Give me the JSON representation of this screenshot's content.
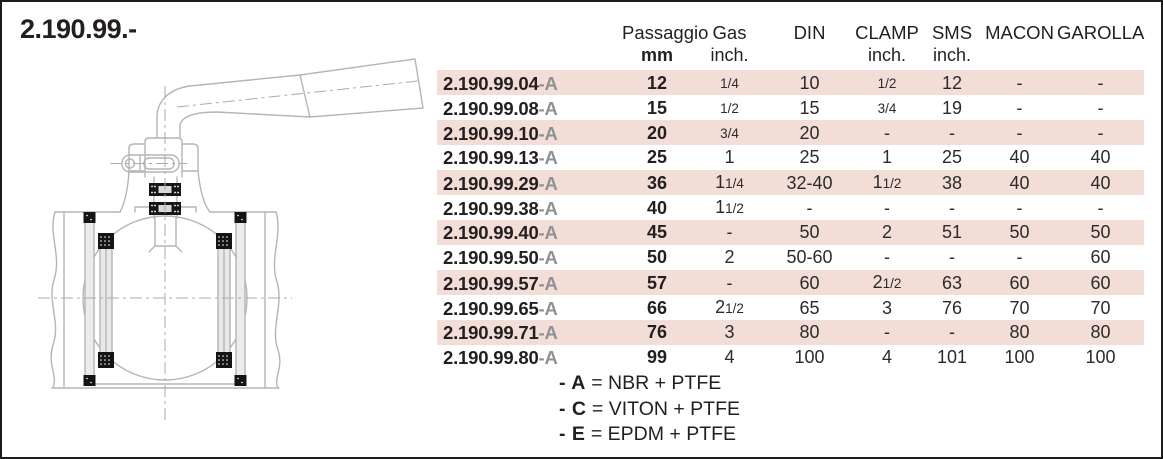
{
  "page": {
    "title": "2.190.99.-"
  },
  "drawing": {
    "name": "ball-valve-cross-section"
  },
  "table": {
    "headers": [
      {
        "line1": "Passaggio",
        "line2": "mm"
      },
      {
        "line1": "Gas",
        "line2": "inch."
      },
      {
        "line1": "DIN",
        "line2": ""
      },
      {
        "line1": "CLAMP",
        "line2": "inch."
      },
      {
        "line1": "SMS",
        "line2": "inch."
      },
      {
        "line1": "MACON",
        "line2": ""
      },
      {
        "line1": "GAROLLA",
        "line2": ""
      }
    ],
    "rows": [
      {
        "code": "2.190.99.04",
        "suffix": "-A",
        "passaggio": "12",
        "gas": "1/4",
        "din": "10",
        "clamp": "1/2",
        "sms": "12",
        "macon": "-",
        "garolla": "-"
      },
      {
        "code": "2.190.99.08",
        "suffix": "-A",
        "passaggio": "15",
        "gas": "1/2",
        "din": "15",
        "clamp": "3/4",
        "sms": "19",
        "macon": "-",
        "garolla": "-"
      },
      {
        "code": "2.190.99.10",
        "suffix": "-A",
        "passaggio": "20",
        "gas": "3/4",
        "din": "20",
        "clamp": "-",
        "sms": "-",
        "macon": "-",
        "garolla": "-"
      },
      {
        "code": "2.190.99.13",
        "suffix": "-A",
        "passaggio": "25",
        "gas": "1",
        "din": "25",
        "clamp": "1",
        "sms": "25",
        "macon": "40",
        "garolla": "40"
      },
      {
        "code": "2.190.99.29",
        "suffix": "-A",
        "passaggio": "36",
        "gas": "1 1/4",
        "din": "32-40",
        "clamp": "1 1/2",
        "sms": "38",
        "macon": "40",
        "garolla": "40"
      },
      {
        "code": "2.190.99.38",
        "suffix": "-A",
        "passaggio": "40",
        "gas": "1 1/2",
        "din": "-",
        "clamp": "-",
        "sms": "-",
        "macon": "-",
        "garolla": "-"
      },
      {
        "code": "2.190.99.40",
        "suffix": "-A",
        "passaggio": "45",
        "gas": "-",
        "din": "50",
        "clamp": "2",
        "sms": "51",
        "macon": "50",
        "garolla": "50"
      },
      {
        "code": "2.190.99.50",
        "suffix": "-A",
        "passaggio": "50",
        "gas": "2",
        "din": "50-60",
        "clamp": "-",
        "sms": "-",
        "macon": "-",
        "garolla": "60"
      },
      {
        "code": "2.190.99.57",
        "suffix": "-A",
        "passaggio": "57",
        "gas": "-",
        "din": "60",
        "clamp": "2 1/2",
        "sms": "63",
        "macon": "60",
        "garolla": "60"
      },
      {
        "code": "2.190.99.65",
        "suffix": "-A",
        "passaggio": "66",
        "gas": "2 1/2",
        "din": "65",
        "clamp": "3",
        "sms": "76",
        "macon": "70",
        "garolla": "70"
      },
      {
        "code": "2.190.99.71",
        "suffix": "-A",
        "passaggio": "76",
        "gas": "3",
        "din": "80",
        "clamp": "-",
        "sms": "-",
        "macon": "80",
        "garolla": "80"
      },
      {
        "code": "2.190.99.80",
        "suffix": "-A",
        "passaggio": "99",
        "gas": "4",
        "din": "100",
        "clamp": "4",
        "sms": "101",
        "macon": "100",
        "garolla": "100"
      }
    ]
  },
  "notes": [
    {
      "prefix": "- A",
      "text": "= NBR + PTFE"
    },
    {
      "prefix": "- C",
      "text": "= VITON + PTFE"
    },
    {
      "prefix": "- E",
      "text": "= EPDM + PTFE"
    }
  ],
  "colors": {
    "stripe": "#f3ded7",
    "suffix_gray": "#8e9093",
    "text_black": "#231f20",
    "drawing_gray": "#b4b6b5"
  }
}
